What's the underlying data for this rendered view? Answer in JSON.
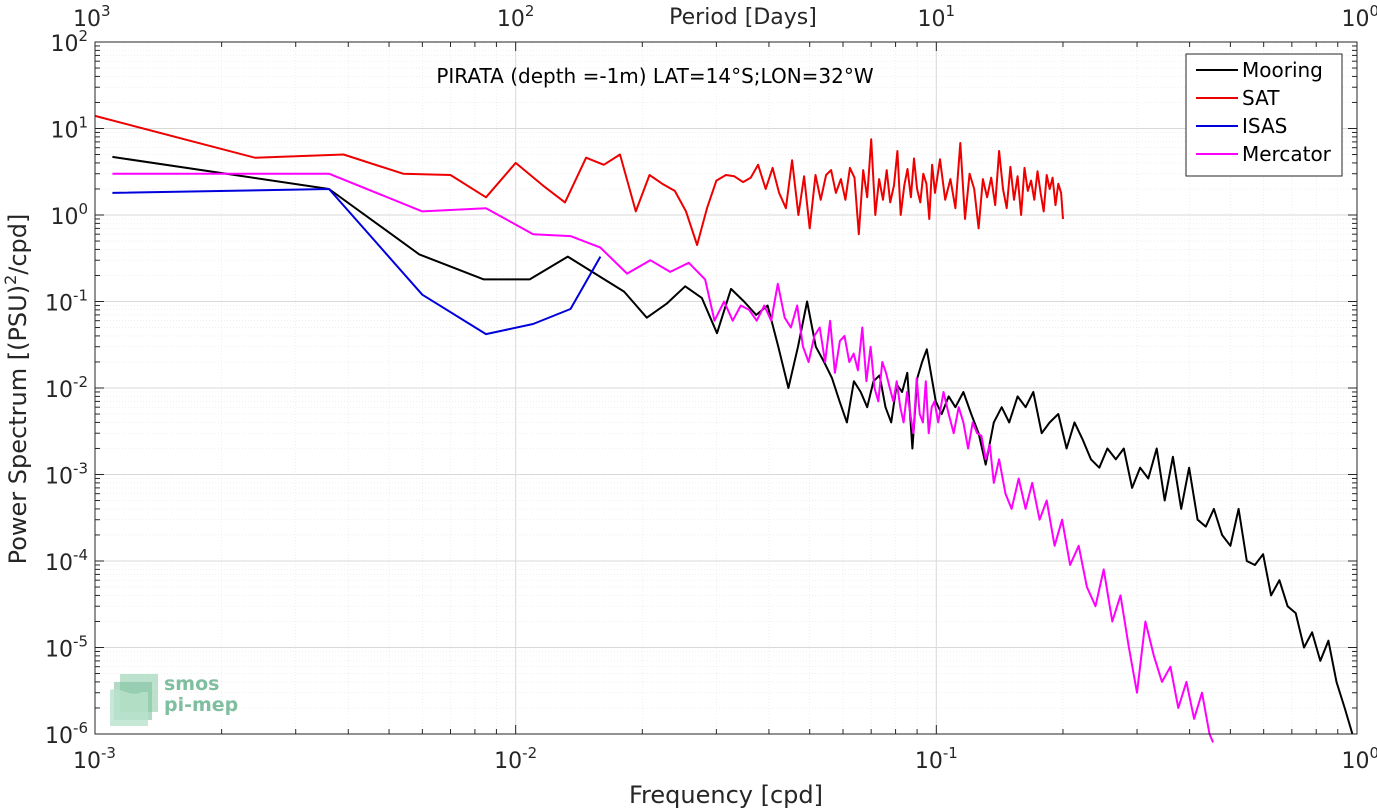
{
  "chart_data": {
    "type": "line",
    "title": "PIRATA (depth =-1m) LAT=14°S;LON=32°W",
    "xlabel": "Frequency [cpd]",
    "ylabel": "Power Spectrum [(PSU)^2/cpd]",
    "x2label": "Period [Days]",
    "xscale": "log",
    "yscale": "log",
    "xlim": [
      0.001,
      1
    ],
    "ylim": [
      1e-06,
      100
    ],
    "grid": true,
    "legend_position": "top-right",
    "x_ticks": [
      {
        "base": "10",
        "exp": "-3"
      },
      {
        "base": "10",
        "exp": "-2"
      },
      {
        "base": "10",
        "exp": "-1"
      },
      {
        "base": "10",
        "exp": "0"
      }
    ],
    "x2_ticks": [
      {
        "base": "10",
        "exp": "3"
      },
      {
        "base": "10",
        "exp": "2"
      },
      {
        "base": "10",
        "exp": "1"
      },
      {
        "base": "10",
        "exp": "0"
      }
    ],
    "y_ticks": [
      {
        "base": "10",
        "exp": "-6"
      },
      {
        "base": "10",
        "exp": "-5"
      },
      {
        "base": "10",
        "exp": "-4"
      },
      {
        "base": "10",
        "exp": "-3"
      },
      {
        "base": "10",
        "exp": "-2"
      },
      {
        "base": "10",
        "exp": "-1"
      },
      {
        "base": "10",
        "exp": "0"
      },
      {
        "base": "10",
        "exp": "1"
      },
      {
        "base": "10",
        "exp": "2"
      }
    ],
    "series": [
      {
        "name": "Mooring",
        "color": "#000000",
        "x": [
          0.0011,
          0.0036,
          0.0059,
          0.0084,
          0.0108,
          0.0133,
          0.0157,
          0.0181,
          0.0205,
          0.0229,
          0.0253,
          0.0277,
          0.0301,
          0.0325,
          0.0349,
          0.0373,
          0.0397,
          0.0421,
          0.0445,
          0.0469,
          0.0493,
          0.0517,
          0.0541,
          0.0565,
          0.0589,
          0.0613,
          0.0637,
          0.0661,
          0.0685,
          0.0709,
          0.0733,
          0.0757,
          0.0781,
          0.0805,
          0.0829,
          0.0853,
          0.0877,
          0.0901,
          0.0925,
          0.0949,
          0.0973,
          0.0997,
          0.103,
          0.107,
          0.111,
          0.116,
          0.121,
          0.126,
          0.131,
          0.137,
          0.143,
          0.149,
          0.156,
          0.163,
          0.17,
          0.178,
          0.186,
          0.195,
          0.204,
          0.213,
          0.223,
          0.233,
          0.244,
          0.255,
          0.267,
          0.279,
          0.292,
          0.305,
          0.319,
          0.334,
          0.349,
          0.365,
          0.382,
          0.399,
          0.418,
          0.437,
          0.457,
          0.478,
          0.5,
          0.523,
          0.547,
          0.572,
          0.598,
          0.625,
          0.654,
          0.684,
          0.715,
          0.748,
          0.782,
          0.818,
          0.855,
          0.894,
          0.935,
          0.975
        ],
        "y": [
          4.7,
          2.0,
          0.35,
          0.18,
          0.18,
          0.33,
          0.2,
          0.13,
          0.065,
          0.095,
          0.15,
          0.11,
          0.043,
          0.14,
          0.1,
          0.07,
          0.09,
          0.03,
          0.01,
          0.03,
          0.1,
          0.03,
          0.02,
          0.013,
          0.007,
          0.004,
          0.012,
          0.009,
          0.006,
          0.012,
          0.014,
          0.006,
          0.004,
          0.011,
          0.009,
          0.015,
          0.002,
          0.013,
          0.02,
          0.028,
          0.014,
          0.007,
          0.005,
          0.008,
          0.006,
          0.009,
          0.005,
          0.003,
          0.0013,
          0.004,
          0.006,
          0.004,
          0.008,
          0.006,
          0.009,
          0.003,
          0.004,
          0.005,
          0.002,
          0.004,
          0.0025,
          0.0015,
          0.0012,
          0.002,
          0.0015,
          0.002,
          0.0007,
          0.0012,
          0.0009,
          0.002,
          0.0005,
          0.0016,
          0.0004,
          0.0012,
          0.0003,
          0.00025,
          0.0004,
          0.0002,
          0.00015,
          0.0004,
          0.0001,
          9e-05,
          0.00012,
          4e-05,
          6e-05,
          3e-05,
          2.5e-05,
          1e-05,
          1.5e-05,
          7e-06,
          1.2e-05,
          4e-06,
          2e-06,
          1e-06
        ]
      },
      {
        "name": "SAT",
        "color": "#ee0000",
        "x": [
          0.001,
          0.0024,
          0.0039,
          0.0054,
          0.007,
          0.0085,
          0.01,
          0.0116,
          0.0131,
          0.0147,
          0.0162,
          0.0177,
          0.0193,
          0.0208,
          0.0223,
          0.0239,
          0.0254,
          0.027,
          0.0285,
          0.03,
          0.0316,
          0.0331,
          0.0347,
          0.0362,
          0.0377,
          0.0393,
          0.0408,
          0.0423,
          0.0439,
          0.0454,
          0.047,
          0.0485,
          0.05,
          0.0516,
          0.0531,
          0.0547,
          0.0562,
          0.0577,
          0.0593,
          0.0608,
          0.0623,
          0.0639,
          0.0654,
          0.067,
          0.0685,
          0.07,
          0.0716,
          0.0731,
          0.0747,
          0.0762,
          0.0777,
          0.0793,
          0.0808,
          0.0823,
          0.0839,
          0.0854,
          0.087,
          0.0885,
          0.09,
          0.0916,
          0.0931,
          0.0947,
          0.0962,
          0.0977,
          0.0993,
          0.102,
          0.105,
          0.108,
          0.111,
          0.114,
          0.117,
          0.12,
          0.123,
          0.126,
          0.129,
          0.132,
          0.135,
          0.138,
          0.141,
          0.144,
          0.147,
          0.15,
          0.153,
          0.156,
          0.159,
          0.162,
          0.165,
          0.168,
          0.171,
          0.174,
          0.177,
          0.18,
          0.183,
          0.186,
          0.189,
          0.192,
          0.195,
          0.198,
          0.2
        ],
        "y": [
          14,
          4.6,
          5.0,
          3.0,
          2.9,
          1.6,
          4.0,
          2.2,
          1.4,
          4.6,
          3.8,
          5.0,
          1.1,
          2.9,
          2.3,
          1.9,
          1.1,
          0.45,
          1.2,
          2.5,
          2.9,
          2.8,
          2.4,
          2.7,
          3.8,
          2.0,
          3.5,
          1.8,
          1.2,
          4.3,
          1.0,
          2.8,
          0.7,
          2.9,
          1.5,
          2.9,
          3.3,
          1.8,
          2.6,
          1.5,
          3.5,
          2.7,
          0.6,
          3.3,
          1.6,
          7.5,
          1.0,
          2.6,
          1.5,
          3.3,
          1.4,
          2.2,
          5.5,
          1.0,
          2.2,
          3.4,
          1.6,
          4.5,
          2.0,
          1.4,
          3.0,
          2.3,
          0.9,
          3.8,
          1.8,
          4.4,
          1.5,
          2.6,
          1.2,
          6.8,
          0.9,
          3.0,
          2.0,
          0.7,
          2.6,
          1.6,
          2.7,
          1.3,
          5.5,
          2.0,
          1.2,
          3.6,
          1.5,
          2.8,
          1.0,
          3.5,
          1.9,
          2.5,
          1.5,
          3.2,
          1.8,
          1.1,
          2.9,
          2.0,
          2.7,
          1.3,
          2.3,
          1.8,
          0.9
        ]
      },
      {
        "name": "ISAS",
        "color": "#0000dd",
        "x": [
          0.0011,
          0.0036,
          0.006,
          0.0085,
          0.011,
          0.0135,
          0.0159
        ],
        "y": [
          1.8,
          2.0,
          0.12,
          0.042,
          0.055,
          0.082,
          0.33
        ]
      },
      {
        "name": "Mercator",
        "color": "#ff00ff",
        "x": [
          0.0011,
          0.0036,
          0.006,
          0.0085,
          0.011,
          0.0135,
          0.0159,
          0.0184,
          0.0209,
          0.0233,
          0.0258,
          0.0282,
          0.0297,
          0.0313,
          0.0328,
          0.0343,
          0.0359,
          0.0374,
          0.039,
          0.0405,
          0.042,
          0.0436,
          0.0451,
          0.0467,
          0.0482,
          0.0497,
          0.0513,
          0.0528,
          0.0544,
          0.0559,
          0.0574,
          0.059,
          0.0605,
          0.0621,
          0.0636,
          0.0651,
          0.0667,
          0.0682,
          0.0698,
          0.0713,
          0.0728,
          0.0744,
          0.0759,
          0.0775,
          0.079,
          0.0805,
          0.0821,
          0.0836,
          0.0852,
          0.0867,
          0.0882,
          0.0898,
          0.0913,
          0.0929,
          0.0944,
          0.0959,
          0.0975,
          0.099,
          0.101,
          0.104,
          0.107,
          0.11,
          0.113,
          0.116,
          0.119,
          0.122,
          0.125,
          0.128,
          0.131,
          0.134,
          0.137,
          0.141,
          0.146,
          0.151,
          0.157,
          0.163,
          0.169,
          0.176,
          0.183,
          0.191,
          0.199,
          0.208,
          0.218,
          0.228,
          0.239,
          0.25,
          0.262,
          0.274,
          0.287,
          0.3,
          0.314,
          0.329,
          0.344,
          0.36,
          0.376,
          0.393,
          0.41,
          0.428,
          0.446,
          0.455
        ],
        "y": [
          3.0,
          3.0,
          1.1,
          1.2,
          0.6,
          0.57,
          0.42,
          0.21,
          0.3,
          0.22,
          0.28,
          0.18,
          0.06,
          0.1,
          0.06,
          0.09,
          0.08,
          0.06,
          0.09,
          0.06,
          0.16,
          0.065,
          0.05,
          0.09,
          0.03,
          0.02,
          0.04,
          0.05,
          0.02,
          0.06,
          0.015,
          0.035,
          0.04,
          0.02,
          0.025,
          0.016,
          0.05,
          0.012,
          0.03,
          0.01,
          0.007,
          0.02,
          0.015,
          0.01,
          0.007,
          0.012,
          0.006,
          0.004,
          0.009,
          0.005,
          0.003,
          0.013,
          0.005,
          0.004,
          0.012,
          0.003,
          0.006,
          0.007,
          0.004,
          0.009,
          0.005,
          0.003,
          0.006,
          0.004,
          0.002,
          0.004,
          0.003,
          0.0028,
          0.0015,
          0.0022,
          0.0008,
          0.0015,
          0.0006,
          0.0004,
          0.0009,
          0.0004,
          0.0008,
          0.0003,
          0.0005,
          0.00015,
          0.0003,
          9e-05,
          0.00015,
          5e-05,
          3e-05,
          8e-05,
          2e-05,
          4e-05,
          1e-05,
          3e-06,
          2e-05,
          8e-06,
          4e-06,
          6e-06,
          2e-06,
          4e-06,
          1.5e-06,
          3e-06,
          1e-06,
          8e-07
        ]
      }
    ]
  },
  "logo": {
    "line1": "smos",
    "line2": "pi-mep"
  }
}
